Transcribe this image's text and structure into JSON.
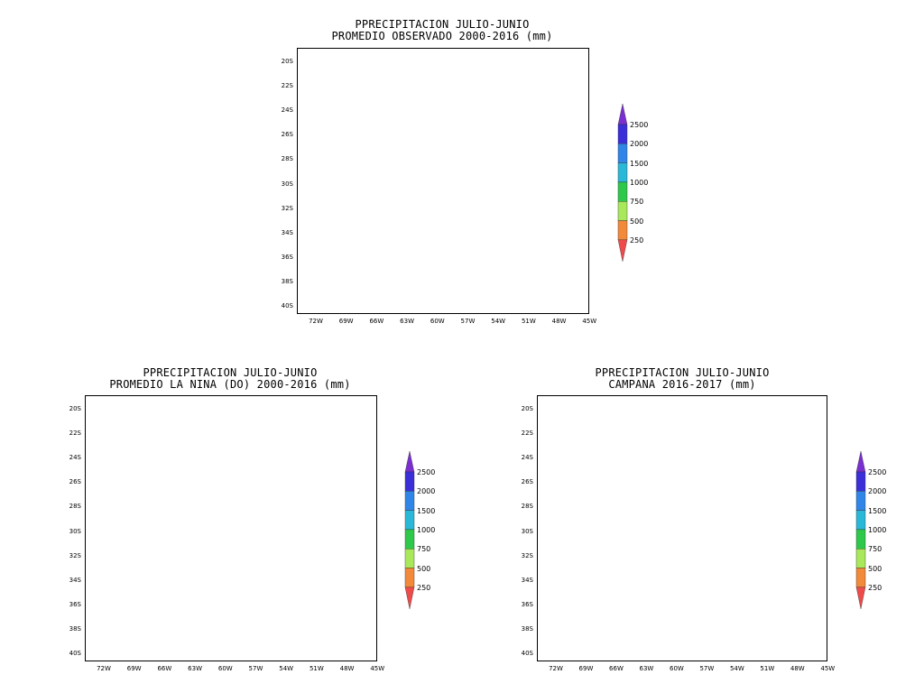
{
  "legend": {
    "colors": [
      "#ef4b4b",
      "#f28a3a",
      "#a8e85a",
      "#2ec84a",
      "#2ab8d8",
      "#2f86e8",
      "#3a2fd8",
      "#7a2fd0"
    ],
    "ticks": [
      "250",
      "500",
      "750",
      "1000",
      "1500",
      "2000",
      "2500"
    ]
  },
  "axes": {
    "lat_labels": [
      "20S",
      "22S",
      "24S",
      "26S",
      "28S",
      "30S",
      "32S",
      "34S",
      "36S",
      "38S",
      "40S"
    ],
    "lon_labels": [
      "72W",
      "69W",
      "66W",
      "63W",
      "60W",
      "57W",
      "54W",
      "51W",
      "48W",
      "45W"
    ]
  },
  "panels": [
    {
      "title_line1": "PPRECIPITACION JULIO-JUNIO",
      "title_line2": "PROMEDIO OBSERVADO 2000-2016 (mm)"
    },
    {
      "title_line1": "PPRECIPITACION JULIO-JUNIO",
      "title_line2": "PROMEDIO LA NINA (DO) 2000-2016 (mm)"
    },
    {
      "title_line1": "PPRECIPITACION JULIO-JUNIO",
      "title_line2": "CAMPANA 2016-2017 (mm)"
    }
  ]
}
